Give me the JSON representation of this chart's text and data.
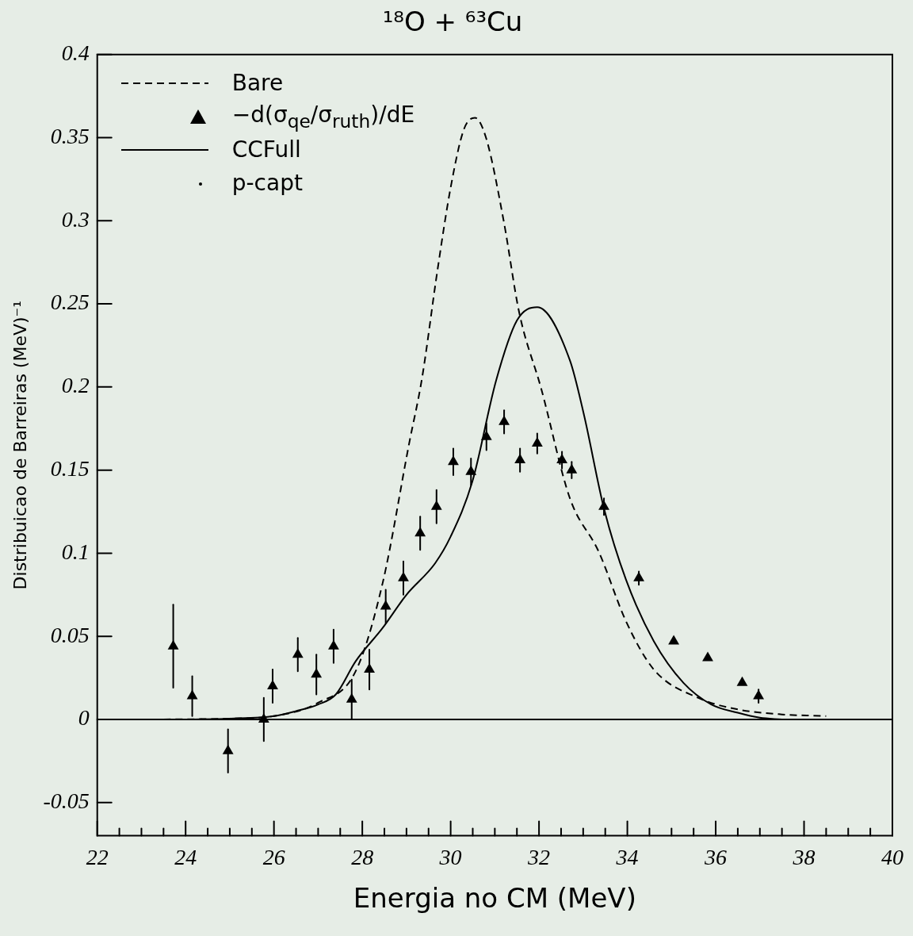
{
  "chart_data": {
    "type": "line",
    "title": "¹⁸O + ⁶³Cu",
    "xlabel": "Energia no CM (MeV)",
    "ylabel": "Distribuicao de Barreiras (MeV)⁻¹",
    "xlim": [
      22,
      40
    ],
    "xticks": [
      22,
      {
        "value": 22.5,
        "label": null
      },
      {
        "value": 23,
        "label": null
      },
      {
        "value": 23.5,
        "label": null
      },
      24,
      {
        "value": 24.5,
        "label": null
      },
      {
        "value": 25,
        "label": null
      },
      {
        "value": 25.5,
        "label": null
      },
      26,
      {
        "value": 26.5,
        "label": null
      },
      {
        "value": 27,
        "label": null
      },
      {
        "value": 27.5,
        "label": null
      },
      28,
      {
        "value": 28.5,
        "label": null
      },
      {
        "value": 29,
        "label": null
      },
      {
        "value": 29.5,
        "label": null
      },
      30,
      {
        "value": 30.5,
        "label": null
      },
      {
        "value": 31,
        "label": null
      },
      {
        "value": 31.5,
        "label": null
      },
      32,
      {
        "value": 32.5,
        "label": null
      },
      {
        "value": 33,
        "label": null
      },
      {
        "value": 33.5,
        "label": null
      },
      34,
      {
        "value": 34.5,
        "label": null
      },
      {
        "value": 35,
        "label": null
      },
      {
        "value": 35.5,
        "label": null
      },
      36,
      {
        "value": 36.5,
        "label": null
      },
      {
        "value": 37,
        "label": null
      },
      {
        "value": 37.5,
        "label": null
      },
      38,
      {
        "value": 38.5,
        "label": null
      },
      {
        "value": 39,
        "label": null
      },
      {
        "value": 39.5,
        "label": null
      },
      40
    ],
    "ylim": [
      -0.07,
      0.4
    ],
    "yticks": [
      -0.05,
      0,
      0.05,
      0.1,
      0.15,
      0.2,
      0.25,
      0.3,
      0.35,
      0.4
    ],
    "grid": false,
    "legend": "top left",
    "ref_lines": [
      {
        "axis": "y",
        "value": 0,
        "color": "#000000",
        "line_style": "solid"
      }
    ],
    "series": [
      {
        "name": "Bare",
        "type": "line",
        "line_style": "dashed",
        "marker": "none",
        "color": "#000000",
        "x": [
          23.5,
          25,
          26,
          27,
          27.85,
          28.46,
          29.06,
          29.35,
          29.7,
          30,
          30.3,
          30.55,
          30.8,
          31.2,
          31.55,
          32.05,
          32.7,
          33.35,
          33.97,
          34.6,
          35.6,
          36.5,
          37.5,
          38.5
        ],
        "values": [
          0,
          0.0005,
          0.002,
          0.01,
          0.029,
          0.082,
          0.166,
          0.205,
          0.27,
          0.32,
          0.355,
          0.362,
          0.35,
          0.3,
          0.245,
          0.199,
          0.133,
          0.101,
          0.059,
          0.03,
          0.013,
          0.006,
          0.003,
          0.002
        ]
      },
      {
        "name": "−d(σ$_{qe}$/σ$_{ruth}$)/dE",
        "type": "scatter",
        "marker": "triangle",
        "color": "#000000",
        "x": [
          23.72,
          24.15,
          24.96,
          25.77,
          25.97,
          26.54,
          26.96,
          27.35,
          27.76,
          28.16,
          28.53,
          28.93,
          29.31,
          29.68,
          30.06,
          30.46,
          30.81,
          31.21,
          31.57,
          31.96,
          32.52,
          32.74,
          33.47,
          34.26,
          35.05,
          35.82,
          36.6,
          36.97
        ],
        "values": [
          0.044,
          0.014,
          -0.019,
          0.0,
          0.02,
          0.039,
          0.027,
          0.044,
          0.012,
          0.03,
          0.068,
          0.085,
          0.112,
          0.128,
          0.155,
          0.149,
          0.17,
          0.179,
          0.156,
          0.166,
          0.156,
          0.15,
          0.128,
          0.085,
          0.047,
          0.037,
          0.022,
          0.014
        ],
        "errors": [
          0.025,
          0.012,
          0.013,
          0.013,
          0.01,
          0.01,
          0.012,
          0.01,
          0.012,
          0.012,
          0.01,
          0.01,
          0.01,
          0.01,
          0.008,
          0.008,
          0.008,
          0.007,
          0.007,
          0.006,
          0.005,
          0.005,
          0.005,
          0.004,
          null,
          null,
          null,
          0.004
        ]
      },
      {
        "name": "CCFull",
        "type": "line",
        "line_style": "solid",
        "marker": "none",
        "color": "#000000",
        "x": [
          24,
          25,
          26,
          26.5,
          27,
          27.4,
          27.85,
          28.46,
          29,
          29.65,
          30,
          30.49,
          31.03,
          31.5,
          31.96,
          32.7,
          33.02,
          33.47,
          33.97,
          34.6,
          35.27,
          35.9,
          36.5,
          37,
          37.5
        ],
        "values": [
          0,
          0.0005,
          0.002,
          0.005,
          0.009,
          0.015,
          0.035,
          0.055,
          0.075,
          0.094,
          0.11,
          0.143,
          0.204,
          0.24,
          0.248,
          0.216,
          0.183,
          0.127,
          0.084,
          0.047,
          0.022,
          0.009,
          0.004,
          0.001,
          0
        ]
      },
      {
        "name": "p-capt",
        "type": "scatter",
        "marker": "circle",
        "color": "#000000"
      }
    ]
  }
}
